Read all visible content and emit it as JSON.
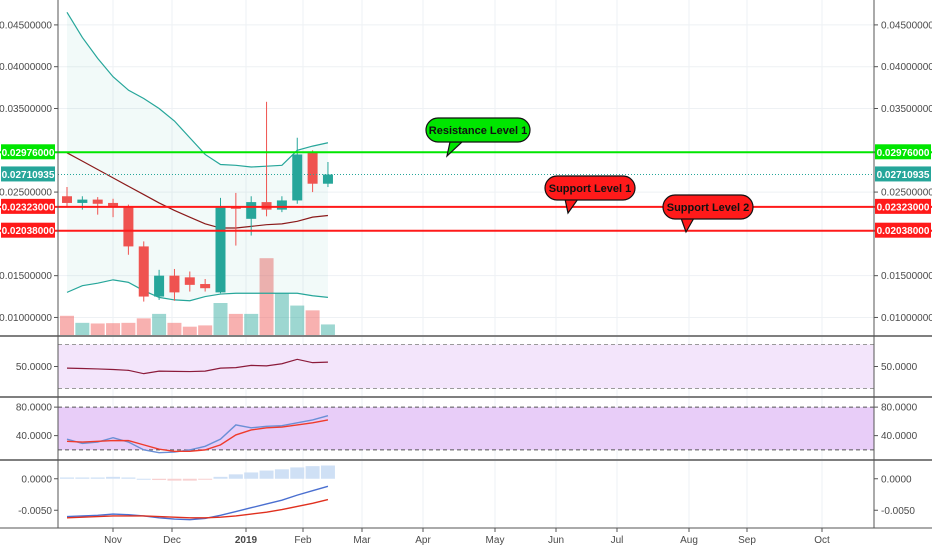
{
  "colors": {
    "bull": "#26a69a",
    "bear": "#ef5350",
    "resistance": "#00e600",
    "support": "#ff1a1a",
    "upper_band": "#26a69a",
    "lower_band": "#26a69a",
    "basis": "#8b1a1a",
    "last_price": "#26a69a",
    "rsi_fill": "#f3e5fb",
    "stoch_fill": "#e8cdf8",
    "stoch_k": "#6a8fd6",
    "stoch_d": "#ef3b2c",
    "macd_line": "#4a6fd0",
    "signal_line": "#e0301e",
    "hist_up": "#cfe0f5",
    "hist_down": "#f8d0d0"
  },
  "chart_data": [
    {
      "type": "candlestick",
      "title": "",
      "ylim": [
        0.0085,
        0.0475
      ],
      "yticks": [
        "0.04500000",
        "0.04000000",
        "0.03500000",
        "0.02500000",
        "0.01500000",
        "0.01000000"
      ],
      "yticks_values": [
        0.045,
        0.04,
        0.035,
        0.025,
        0.015,
        0.01
      ],
      "x_labels": [
        "Nov",
        "Dec",
        "2019",
        "Feb",
        "Mar",
        "Apr",
        "May",
        "Jun",
        "Jul",
        "Aug",
        "Sep",
        "Oct"
      ],
      "candles": [
        {
          "o": 0.0245,
          "h": 0.0256,
          "l": 0.0232,
          "c": 0.0237
        },
        {
          "o": 0.0237,
          "h": 0.0245,
          "l": 0.0229,
          "c": 0.0241
        },
        {
          "o": 0.0241,
          "h": 0.0244,
          "l": 0.0223,
          "c": 0.0236
        },
        {
          "o": 0.0237,
          "h": 0.0242,
          "l": 0.022,
          "c": 0.0232
        },
        {
          "o": 0.0232,
          "h": 0.0235,
          "l": 0.0175,
          "c": 0.0185
        },
        {
          "o": 0.0185,
          "h": 0.0191,
          "l": 0.0119,
          "c": 0.0125
        },
        {
          "o": 0.0125,
          "h": 0.0157,
          "l": 0.0121,
          "c": 0.015
        },
        {
          "o": 0.015,
          "h": 0.0158,
          "l": 0.012,
          "c": 0.013
        },
        {
          "o": 0.0148,
          "h": 0.0155,
          "l": 0.0131,
          "c": 0.0139
        },
        {
          "o": 0.014,
          "h": 0.0146,
          "l": 0.0131,
          "c": 0.0135
        },
        {
          "o": 0.013,
          "h": 0.0243,
          "l": 0.0129,
          "c": 0.0232
        },
        {
          "o": 0.0232,
          "h": 0.0249,
          "l": 0.0186,
          "c": 0.023
        },
        {
          "o": 0.0218,
          "h": 0.0245,
          "l": 0.0198,
          "c": 0.0238
        },
        {
          "o": 0.0238,
          "h": 0.0358,
          "l": 0.0221,
          "c": 0.0229
        },
        {
          "o": 0.0229,
          "h": 0.0245,
          "l": 0.0226,
          "c": 0.024
        },
        {
          "o": 0.024,
          "h": 0.0315,
          "l": 0.0236,
          "c": 0.0295
        },
        {
          "o": 0.0298,
          "h": 0.03,
          "l": 0.025,
          "c": 0.026
        },
        {
          "o": 0.026,
          "h": 0.0286,
          "l": 0.0256,
          "c": 0.0271
        }
      ],
      "volume": [
        0.6,
        0.38,
        0.36,
        0.37,
        0.38,
        0.52,
        0.66,
        0.38,
        0.26,
        0.3,
        1.0,
        0.66,
        0.66,
        2.4,
        1.3,
        0.92,
        0.77,
        0.33
      ],
      "bollinger_upper": [
        0.0465,
        0.0435,
        0.041,
        0.0388,
        0.0372,
        0.0362,
        0.035,
        0.0335,
        0.0315,
        0.0295,
        0.0283,
        0.0282,
        0.028,
        0.0281,
        0.0282,
        0.03,
        0.0305,
        0.0309
      ],
      "bollinger_basis": [
        0.0297,
        0.0287,
        0.0277,
        0.0267,
        0.0257,
        0.0247,
        0.0237,
        0.0228,
        0.022,
        0.0212,
        0.0207,
        0.0207,
        0.0209,
        0.0211,
        0.0212,
        0.0215,
        0.022,
        0.0222
      ],
      "bollinger_lower": [
        0.013,
        0.0138,
        0.0141,
        0.0145,
        0.0142,
        0.0132,
        0.0124,
        0.0121,
        0.012,
        0.0125,
        0.0128,
        0.0129,
        0.0129,
        0.0129,
        0.0129,
        0.0129,
        0.0126,
        0.0124
      ],
      "levels": [
        {
          "name": "Resistance Level 1",
          "value": 0.02976,
          "label": "0.02976000",
          "kind": "resistance"
        },
        {
          "name": "Support Level 1",
          "value": 0.02323,
          "label": "0.02323000",
          "kind": "support"
        },
        {
          "name": "Support Level 2",
          "value": 0.02038,
          "label": "0.02038000",
          "kind": "support"
        }
      ],
      "last_price": {
        "value": 0.02710935,
        "label": "0.02710935"
      },
      "annotations": [
        {
          "text": "Resistance Level 1",
          "kind": "resistance"
        },
        {
          "text": "Support Level 1",
          "kind": "support"
        },
        {
          "text": "Support Level 2",
          "kind": "support"
        }
      ]
    },
    {
      "type": "line",
      "indicator": "rsi",
      "ylim": [
        25,
        75
      ],
      "band": [
        30,
        70
      ],
      "yticks": [
        "50.0000"
      ],
      "yticks_values": [
        50
      ],
      "values": [
        48.5,
        48.2,
        47.8,
        47.3,
        46.5,
        43.5,
        45.8,
        45.6,
        45.4,
        45.8,
        48.5,
        49.0,
        51.0,
        50.6,
        52.5,
        56.5,
        53.5,
        54.0
      ]
    },
    {
      "type": "line",
      "indicator": "stochastic",
      "ylim": [
        10,
        90
      ],
      "band": [
        20,
        80
      ],
      "yticks": [
        "80.0000",
        "40.0000"
      ],
      "yticks_values": [
        80,
        40
      ],
      "series": [
        {
          "name": "k",
          "values": [
            35,
            29,
            31,
            37,
            31,
            20,
            16,
            17,
            20,
            25,
            35,
            55,
            51,
            53,
            54,
            58,
            62,
            68
          ]
        },
        {
          "name": "d",
          "values": [
            32,
            31,
            32,
            33,
            33,
            27,
            21,
            18,
            18,
            20,
            27,
            41,
            48,
            51,
            52,
            55,
            58,
            62
          ]
        }
      ]
    },
    {
      "type": "line",
      "indicator": "macd",
      "ylim": [
        -0.0075,
        0.0025
      ],
      "yticks": [
        "0.0000",
        "-0.0050"
      ],
      "yticks_values": [
        0,
        -0.005
      ],
      "series": [
        {
          "name": "macd",
          "values": [
            -0.006,
            -0.0059,
            -0.0058,
            -0.0056,
            -0.0057,
            -0.0059,
            -0.0062,
            -0.0064,
            -0.0065,
            -0.0063,
            -0.0058,
            -0.0052,
            -0.0046,
            -0.004,
            -0.0034,
            -0.0026,
            -0.0019,
            -0.0012
          ]
        },
        {
          "name": "signal",
          "values": [
            -0.0062,
            -0.0061,
            -0.006,
            -0.0059,
            -0.0059,
            -0.0059,
            -0.006,
            -0.0061,
            -0.0062,
            -0.0062,
            -0.0061,
            -0.0059,
            -0.0056,
            -0.0053,
            -0.0049,
            -0.0044,
            -0.0039,
            -0.0033
          ]
        },
        {
          "name": "histogram",
          "values": [
            0.0002,
            0.0002,
            0.0002,
            0.0003,
            0.0002,
            0.0,
            -0.0002,
            -0.0003,
            -0.0003,
            -0.0001,
            0.0003,
            0.0007,
            0.001,
            0.0013,
            0.0015,
            0.0018,
            0.002,
            0.0021
          ]
        }
      ]
    }
  ]
}
